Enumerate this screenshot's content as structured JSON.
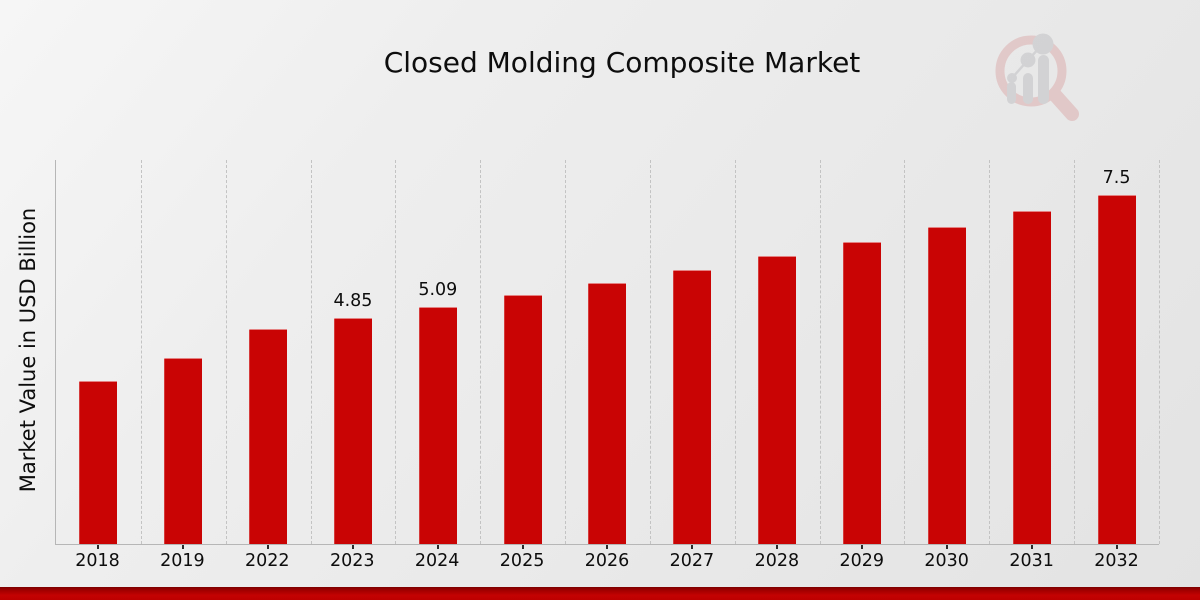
{
  "chart_data": {
    "type": "bar",
    "title": "Closed Molding Composite Market",
    "xlabel": "",
    "ylabel": "Market Value in USD Billion",
    "categories": [
      "2018",
      "2019",
      "2022",
      "2023",
      "2024",
      "2025",
      "2026",
      "2027",
      "2028",
      "2029",
      "2030",
      "2031",
      "2032"
    ],
    "values": [
      3.5,
      3.99,
      4.62,
      4.85,
      5.09,
      5.34,
      5.61,
      5.89,
      6.18,
      6.49,
      6.81,
      7.15,
      7.5
    ],
    "data_labels": [
      "",
      "",
      "",
      "4.85",
      "5.09",
      "",
      "",
      "",
      "",
      "",
      "",
      "",
      "7.5"
    ],
    "bar_color": "#c90404",
    "ylim": [
      0,
      8.26
    ],
    "grid": "vertical-dashed",
    "legend_position": "none"
  },
  "watermark": {
    "icon": "magnifier-bar-chart-logo",
    "ring_color": "#ddb6b6",
    "bars_color": "#c6c6c9"
  },
  "footer": {
    "banner_color": "#c40202"
  },
  "colors": {
    "background_light": "#f6f6f6",
    "background_dark": "#e3e3e3",
    "gridline": "#c3c3c3",
    "axis": "#b6b6b6",
    "text": "#0d0d0d"
  }
}
